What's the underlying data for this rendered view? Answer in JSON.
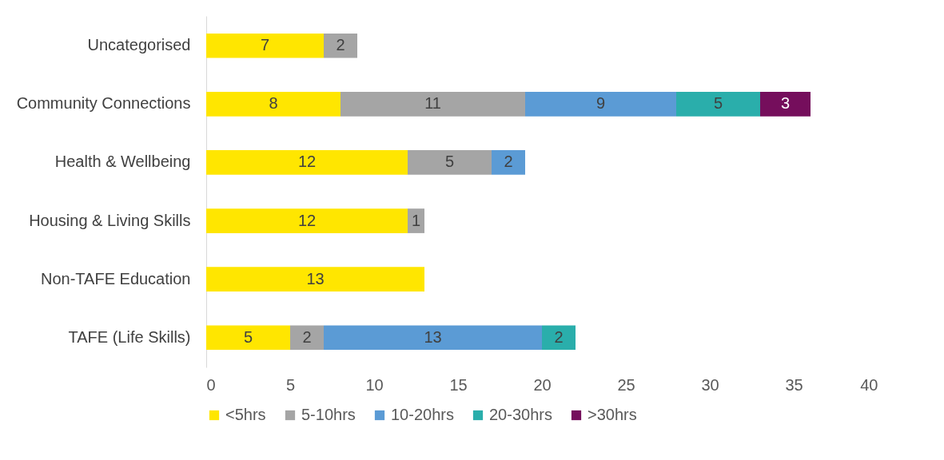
{
  "chart_data": {
    "type": "bar",
    "orientation": "horizontal",
    "stacked": true,
    "data_labels": true,
    "categories": [
      "Uncategorised",
      "Community Connections",
      "Health & Wellbeing",
      "Housing & Living Skills",
      "Non-TAFE Education",
      "TAFE (Life Skills)"
    ],
    "series": [
      {
        "name": "<5hrs",
        "color": "#ffe600",
        "values": [
          7,
          8,
          12,
          12,
          13,
          5
        ]
      },
      {
        "name": "5-10hrs",
        "color": "#a5a5a5",
        "values": [
          2,
          11,
          5,
          1,
          null,
          2
        ]
      },
      {
        "name": "10-20hrs",
        "color": "#5b9bd5",
        "values": [
          null,
          9,
          2,
          null,
          null,
          13
        ]
      },
      {
        "name": "20-30hrs",
        "color": "#2aaeab",
        "values": [
          null,
          5,
          null,
          null,
          null,
          2
        ]
      },
      {
        "name": ">30hrs",
        "color": "#750e5c",
        "values": [
          null,
          3,
          null,
          null,
          null,
          null
        ]
      }
    ],
    "xlim": [
      0,
      40
    ],
    "xticks": [
      0,
      5,
      10,
      15,
      20,
      25,
      30,
      35,
      40
    ],
    "grid": false,
    "legend": "bottom"
  }
}
